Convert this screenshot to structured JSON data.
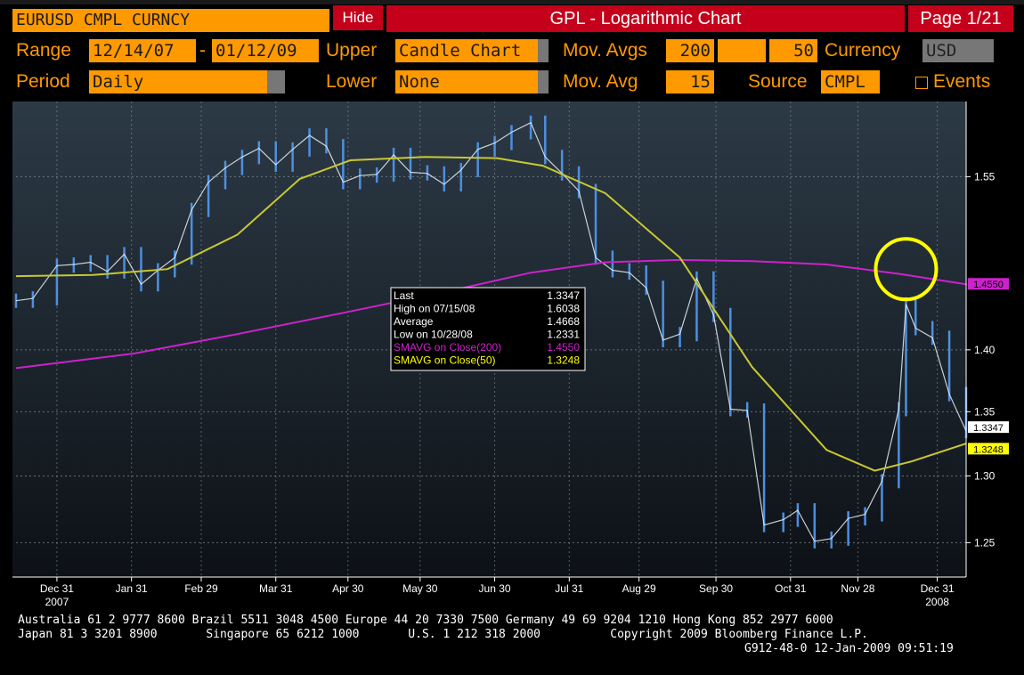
{
  "header": {
    "ticker": "EURUSD CMPL CURNCY",
    "hide_label": "Hide",
    "title": "GPL - Logarithmic Chart",
    "page": "Page 1/21"
  },
  "controls": {
    "range_label": "Range",
    "range_start": "12/14/07",
    "range_sep": "-",
    "range_end": "01/12/09",
    "upper_label": "Upper",
    "upper_value": "Candle Chart",
    "mov_avgs_label": "Mov. Avgs",
    "mov_avg_1": "200",
    "mov_avg_2": "50",
    "currency_label": "Currency",
    "currency_value": "USD",
    "period_label": "Period",
    "period_value": "Daily",
    "lower_label": "Lower",
    "lower_value": "None",
    "mov_avg_label": "Mov. Avg",
    "mov_avg_value": "15",
    "source_label": "Source",
    "source_value": "CMPL",
    "events_label": "Events"
  },
  "colors": {
    "accent": "#ff9900",
    "header_red": "#c4001a",
    "candle": "#4d8fe0",
    "sma200": "#cc22cc",
    "sma50": "#c8c832",
    "highlight_circle": "#ffff00"
  },
  "chart_data": {
    "type": "line",
    "title": "GPL - Logarithmic Chart",
    "scale": "log",
    "x_range": [
      "2007-12-14",
      "2009-01-12"
    ],
    "ylim": [
      1.225,
      1.62
    ],
    "y_ticks": [
      1.25,
      1.3,
      1.35,
      1.4,
      1.55
    ],
    "y_tick_labels": [
      "1.25",
      "1.30",
      "1.35",
      "1.40",
      "1.55"
    ],
    "x_tick_labels": [
      "Dec 31",
      "Jan 31",
      "Feb 29",
      "Mar 31",
      "Apr 30",
      "May 30",
      "Jun 30",
      "Jul 31",
      "Aug 29",
      "Sep 30",
      "Oct 31",
      "Nov 28",
      "Dec 31"
    ],
    "x_tick_dates": [
      "2007-12-31",
      "2008-01-31",
      "2008-02-29",
      "2008-03-31",
      "2008-04-30",
      "2008-05-30",
      "2008-06-30",
      "2008-07-31",
      "2008-08-29",
      "2008-09-30",
      "2008-10-31",
      "2008-11-28",
      "2008-12-31"
    ],
    "year_labels": [
      {
        "label": "2007",
        "date": "2007-12-31"
      },
      {
        "label": "2008",
        "date": "2008-12-31"
      }
    ],
    "grid": true,
    "series": [
      {
        "kind": "candle",
        "x": [
          "2007-12-14",
          "2007-12-21",
          "2007-12-31",
          "2008-01-07",
          "2008-01-14",
          "2008-01-21",
          "2008-01-28",
          "2008-02-04",
          "2008-02-11",
          "2008-02-18",
          "2008-02-25",
          "2008-03-03",
          "2008-03-10",
          "2008-03-17",
          "2008-03-24",
          "2008-03-31",
          "2008-04-07",
          "2008-04-14",
          "2008-04-21",
          "2008-04-28",
          "2008-05-05",
          "2008-05-12",
          "2008-05-19",
          "2008-05-26",
          "2008-06-02",
          "2008-06-09",
          "2008-06-16",
          "2008-06-23",
          "2008-06-30",
          "2008-07-07",
          "2008-07-15",
          "2008-07-21",
          "2008-07-28",
          "2008-08-04",
          "2008-08-11",
          "2008-08-18",
          "2008-08-25",
          "2008-09-01",
          "2008-09-08",
          "2008-09-15",
          "2008-09-22",
          "2008-09-29",
          "2008-10-06",
          "2008-10-13",
          "2008-10-20",
          "2008-10-28",
          "2008-11-03",
          "2008-11-10",
          "2008-11-17",
          "2008-11-24",
          "2008-12-01",
          "2008-12-08",
          "2008-12-15",
          "2008-12-18",
          "2008-12-22",
          "2008-12-29",
          "2009-01-05",
          "2009-01-12"
        ],
        "y": [
          1.441,
          1.443,
          1.471,
          1.472,
          1.474,
          1.466,
          1.481,
          1.455,
          1.467,
          1.478,
          1.52,
          1.545,
          1.558,
          1.568,
          1.576,
          1.561,
          1.575,
          1.588,
          1.578,
          1.545,
          1.551,
          1.552,
          1.57,
          1.554,
          1.553,
          1.543,
          1.556,
          1.575,
          1.581,
          1.591,
          1.6,
          1.568,
          1.553,
          1.537,
          1.478,
          1.467,
          1.465,
          1.452,
          1.408,
          1.413,
          1.46,
          1.429,
          1.352,
          1.351,
          1.263,
          1.267,
          1.274,
          1.251,
          1.253,
          1.268,
          1.271,
          1.296,
          1.352,
          1.438,
          1.418,
          1.41,
          1.364,
          1.3347
        ]
      },
      {
        "name": "SMAVG on Close(200)",
        "kind": "line",
        "x": [
          "2007-12-14",
          "2008-02-01",
          "2008-03-15",
          "2008-05-01",
          "2008-06-15",
          "2008-07-15",
          "2008-08-15",
          "2008-09-15",
          "2008-10-15",
          "2008-11-15",
          "2008-12-15",
          "2009-01-12"
        ],
        "y": [
          1.385,
          1.397,
          1.413,
          1.432,
          1.451,
          1.465,
          1.474,
          1.476,
          1.475,
          1.472,
          1.464,
          1.455
        ]
      },
      {
        "name": "SMAVG on Close(50)",
        "kind": "line",
        "x": [
          "2007-12-14",
          "2008-01-15",
          "2008-02-15",
          "2008-03-15",
          "2008-04-10",
          "2008-05-01",
          "2008-06-01",
          "2008-07-01",
          "2008-07-20",
          "2008-08-15",
          "2008-09-15",
          "2008-10-15",
          "2008-11-15",
          "2008-12-05",
          "2008-12-20",
          "2009-01-12"
        ],
        "y": [
          1.462,
          1.463,
          1.468,
          1.498,
          1.548,
          1.565,
          1.568,
          1.567,
          1.56,
          1.535,
          1.478,
          1.386,
          1.32,
          1.304,
          1.311,
          1.325
        ]
      }
    ],
    "right_labels": [
      {
        "text": "1.4550",
        "value": 1.455,
        "color": "#cc22cc"
      },
      {
        "text": "1.3347",
        "value": 1.3347,
        "color": "#ffffff"
      },
      {
        "text": "1.3248",
        "value": 1.3248,
        "color": "#ffff00"
      }
    ],
    "legend": {
      "rows": [
        {
          "label": "Last",
          "value": "1.3347",
          "color": "#ffffff"
        },
        {
          "label": "High on  07/15/08",
          "value": "1.6038",
          "color": "#ffffff"
        },
        {
          "label": "Average",
          "value": "1.4668",
          "color": "#ffffff"
        },
        {
          "label": "Low on  10/28/08",
          "value": "1.2331",
          "color": "#ffffff"
        },
        {
          "label": "SMAVG on Close(200)",
          "value": "1.4550",
          "color": "#cc22cc"
        },
        {
          "label": "SMAVG on Close(50)",
          "value": "1.3248",
          "color": "#ffff00"
        }
      ]
    },
    "annotation": {
      "shape": "circle",
      "date": "2008-12-18",
      "value": 1.468
    }
  },
  "footer": {
    "line1": "Australia 61 2 9777 8600 Brazil 5511 3048 4500 Europe 44 20 7330 7500 Germany 49 69 9204 1210 Hong Kong 852 2977 6000",
    "line2": "Japan 81 3 3201 8900       Singapore 65 6212 1000       U.S. 1 212 318 2000          Copyright 2009 Bloomberg Finance L.P.",
    "line3": "G912-48-0 12-Jan-2009 09:51:19"
  }
}
